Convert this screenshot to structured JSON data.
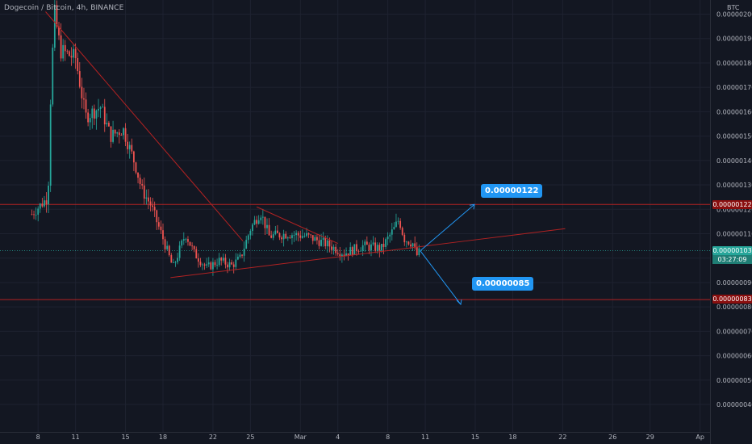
{
  "header": {
    "symbol": "Dogecoin / Bitcoin, 4h, BINANCE",
    "currency": "BTC"
  },
  "colors": {
    "background": "#131722",
    "up": "#26a69a",
    "down": "#ef5350",
    "resistance": "#b22222",
    "annotation": "#2196f3",
    "axis_text": "#b2b5be"
  },
  "chart_data": {
    "type": "candlestick",
    "title": "Dogecoin / Bitcoin, 4h, BINANCE",
    "xlabel": "",
    "ylabel": "",
    "grid": true,
    "ylim": [
      3.5e-07,
      2.05e-06
    ],
    "y_tick_labels": [
      "0.00000200",
      "0.00000190",
      "0.00000180",
      "0.00000170",
      "0.00000160",
      "0.00000150",
      "0.00000140",
      "0.00000130",
      "0.00000120",
      "0.00000110",
      "0.00000100",
      "0.00000090",
      "0.00000080",
      "0.00000070",
      "0.00000060",
      "0.00000050",
      "0.00000040"
    ],
    "y_tick_values": [
      200,
      190,
      180,
      170,
      160,
      150,
      140,
      130,
      120,
      110,
      100,
      90,
      80,
      70,
      60,
      50,
      40
    ],
    "x_tick_labels": [
      "8",
      "11",
      "15",
      "18",
      "22",
      "25",
      "Mar",
      "4",
      "8",
      "11",
      "15",
      "18",
      "22",
      "26",
      "29",
      "Ap"
    ],
    "x_tick_day_index": [
      0,
      3,
      7,
      10,
      14,
      17,
      21,
      24,
      28,
      31,
      35,
      38,
      42,
      46,
      49,
      53
    ],
    "price_unit_multiplier": 1e-09,
    "key_levels": [
      {
        "label": "0.00000122",
        "value": 122,
        "role": "resistance"
      },
      {
        "label": "0.00000083",
        "value": 83,
        "role": "support"
      }
    ],
    "current_price": {
      "label": "0.00000103",
      "value": 103
    },
    "countdown": "03:27:09",
    "targets": [
      {
        "label": "0.00000122",
        "value": 122,
        "direction": "up"
      },
      {
        "label": "0.00000085",
        "value": 85,
        "direction": "down"
      }
    ],
    "trendlines": [
      {
        "from": [
          0.6,
          201
        ],
        "to": [
          16.4,
          107
        ]
      },
      {
        "from": [
          10.6,
          92
        ],
        "to": [
          34.2,
          107
        ]
      },
      {
        "from": [
          17.5,
          121
        ],
        "to": [
          24.0,
          106
        ]
      }
    ],
    "anchors": [
      {
        "day": -0.5,
        "price": 118
      },
      {
        "day": 0.8,
        "price": 125
      },
      {
        "day": 1.0,
        "price": 165
      },
      {
        "day": 1.3,
        "price": 201
      },
      {
        "day": 1.8,
        "price": 185
      },
      {
        "day": 3.0,
        "price": 182
      },
      {
        "day": 3.8,
        "price": 158
      },
      {
        "day": 5.0,
        "price": 162
      },
      {
        "day": 5.8,
        "price": 150
      },
      {
        "day": 6.8,
        "price": 153
      },
      {
        "day": 7.8,
        "price": 138
      },
      {
        "day": 8.3,
        "price": 128
      },
      {
        "day": 9.0,
        "price": 122
      },
      {
        "day": 10.0,
        "price": 108
      },
      {
        "day": 10.8,
        "price": 96
      },
      {
        "day": 11.8,
        "price": 110
      },
      {
        "day": 12.5,
        "price": 102
      },
      {
        "day": 13.5,
        "price": 96
      },
      {
        "day": 14.5,
        "price": 99
      },
      {
        "day": 15.5,
        "price": 97
      },
      {
        "day": 16.2,
        "price": 100
      },
      {
        "day": 17.0,
        "price": 112
      },
      {
        "day": 17.8,
        "price": 119
      },
      {
        "day": 18.5,
        "price": 109
      },
      {
        "day": 20.0,
        "price": 110
      },
      {
        "day": 21.5,
        "price": 109
      },
      {
        "day": 23.0,
        "price": 106
      },
      {
        "day": 24.5,
        "price": 102
      },
      {
        "day": 26.0,
        "price": 105
      },
      {
        "day": 27.5,
        "price": 104
      },
      {
        "day": 28.5,
        "price": 112
      },
      {
        "day": 28.9,
        "price": 116
      },
      {
        "day": 29.3,
        "price": 108
      },
      {
        "day": 30.0,
        "price": 106
      },
      {
        "day": 30.3,
        "price": 101
      },
      {
        "day": 30.6,
        "price": 103
      }
    ]
  }
}
